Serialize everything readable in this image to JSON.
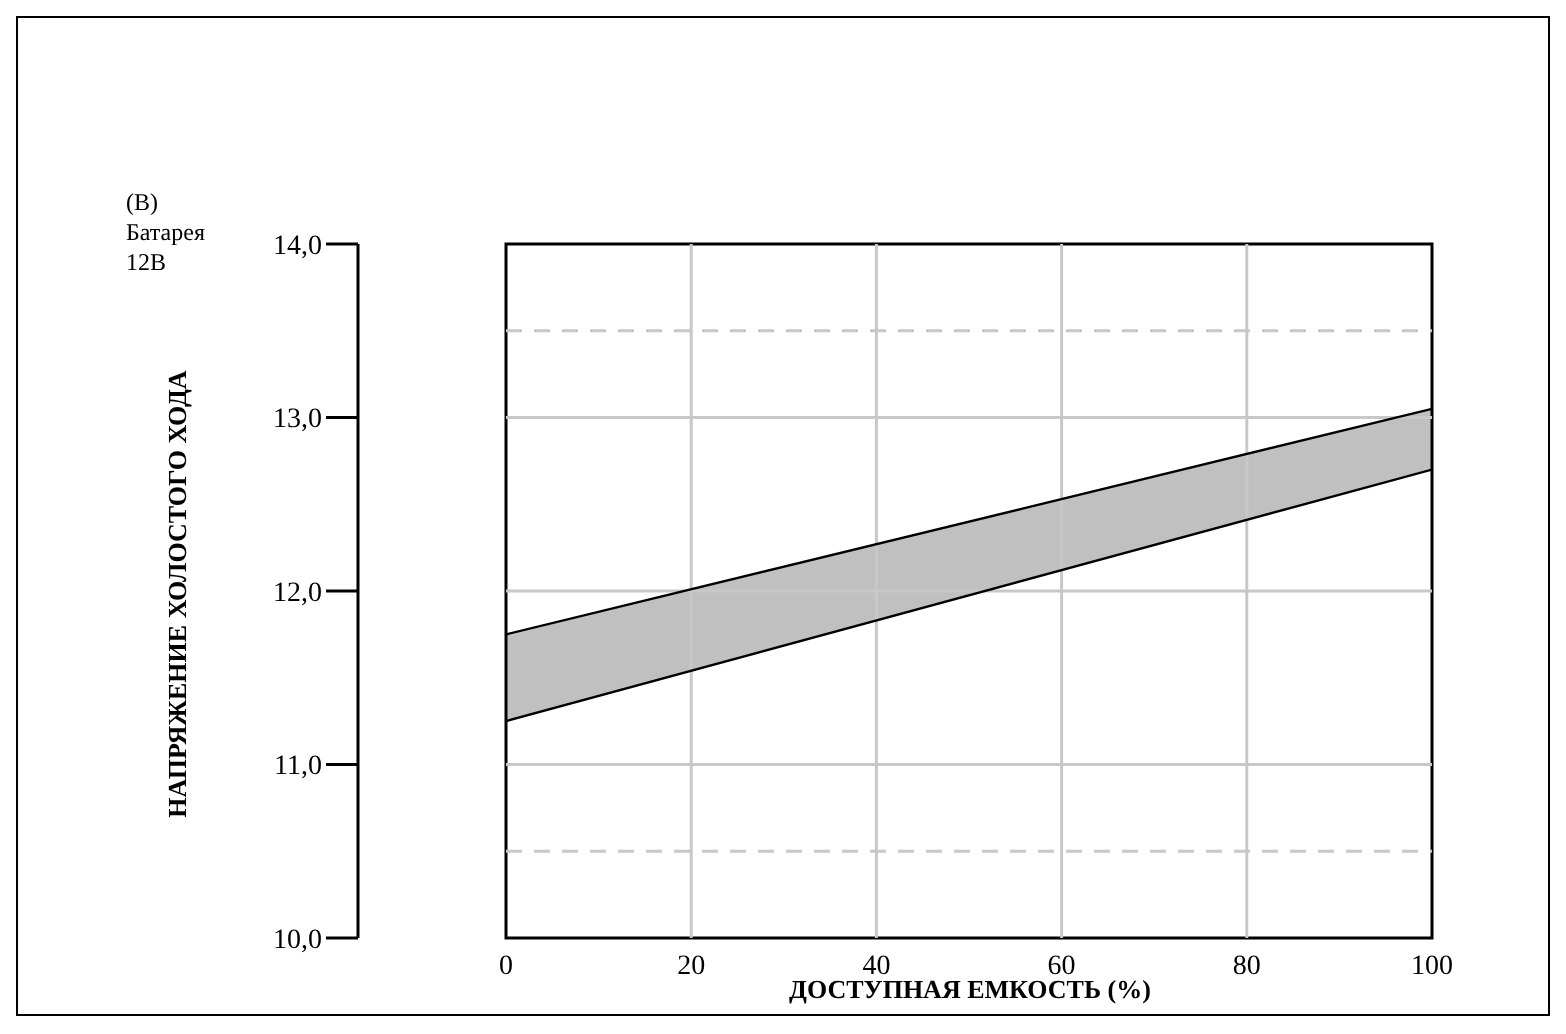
{
  "chart_data": {
    "type": "line",
    "xlabel": "ДОСТУПНАЯ ЕМКОСТЬ (%)",
    "ylabel": "НАПРЯЖЕНИЕ ХОЛОСТОГО ХОДА",
    "annotations": [
      "(В)",
      "Батарея",
      "12В"
    ],
    "x": [
      0,
      100
    ],
    "series": [
      {
        "color": "#000000",
        "values": [
          11.75,
          13.05
        ],
        "lower": [
          11.25,
          12.7
        ],
        "upper": [
          11.75,
          13.05
        ]
      },
      {
        "color": "#000000",
        "values": [
          11.25,
          12.7
        ]
      }
    ],
    "xlim": [
      0,
      100
    ],
    "xticks": [
      0,
      20,
      40,
      60,
      80,
      100
    ],
    "ylim": [
      10,
      14
    ],
    "yticks": [
      {
        "value": 10,
        "label": "10,0"
      },
      {
        "value": 11,
        "label": "11,0"
      },
      {
        "value": 12,
        "label": "12,0"
      },
      {
        "value": 13,
        "label": "13,0"
      },
      {
        "value": 14,
        "label": "14,0"
      }
    ],
    "ref_lines": [
      {
        "axis": "y",
        "value": 10.5,
        "line_style": "dashed",
        "color": "#c8c8c8"
      },
      {
        "axis": "y",
        "value": 13.5,
        "line_style": "dashed",
        "color": "#c8c8c8"
      }
    ],
    "grid": true
  }
}
